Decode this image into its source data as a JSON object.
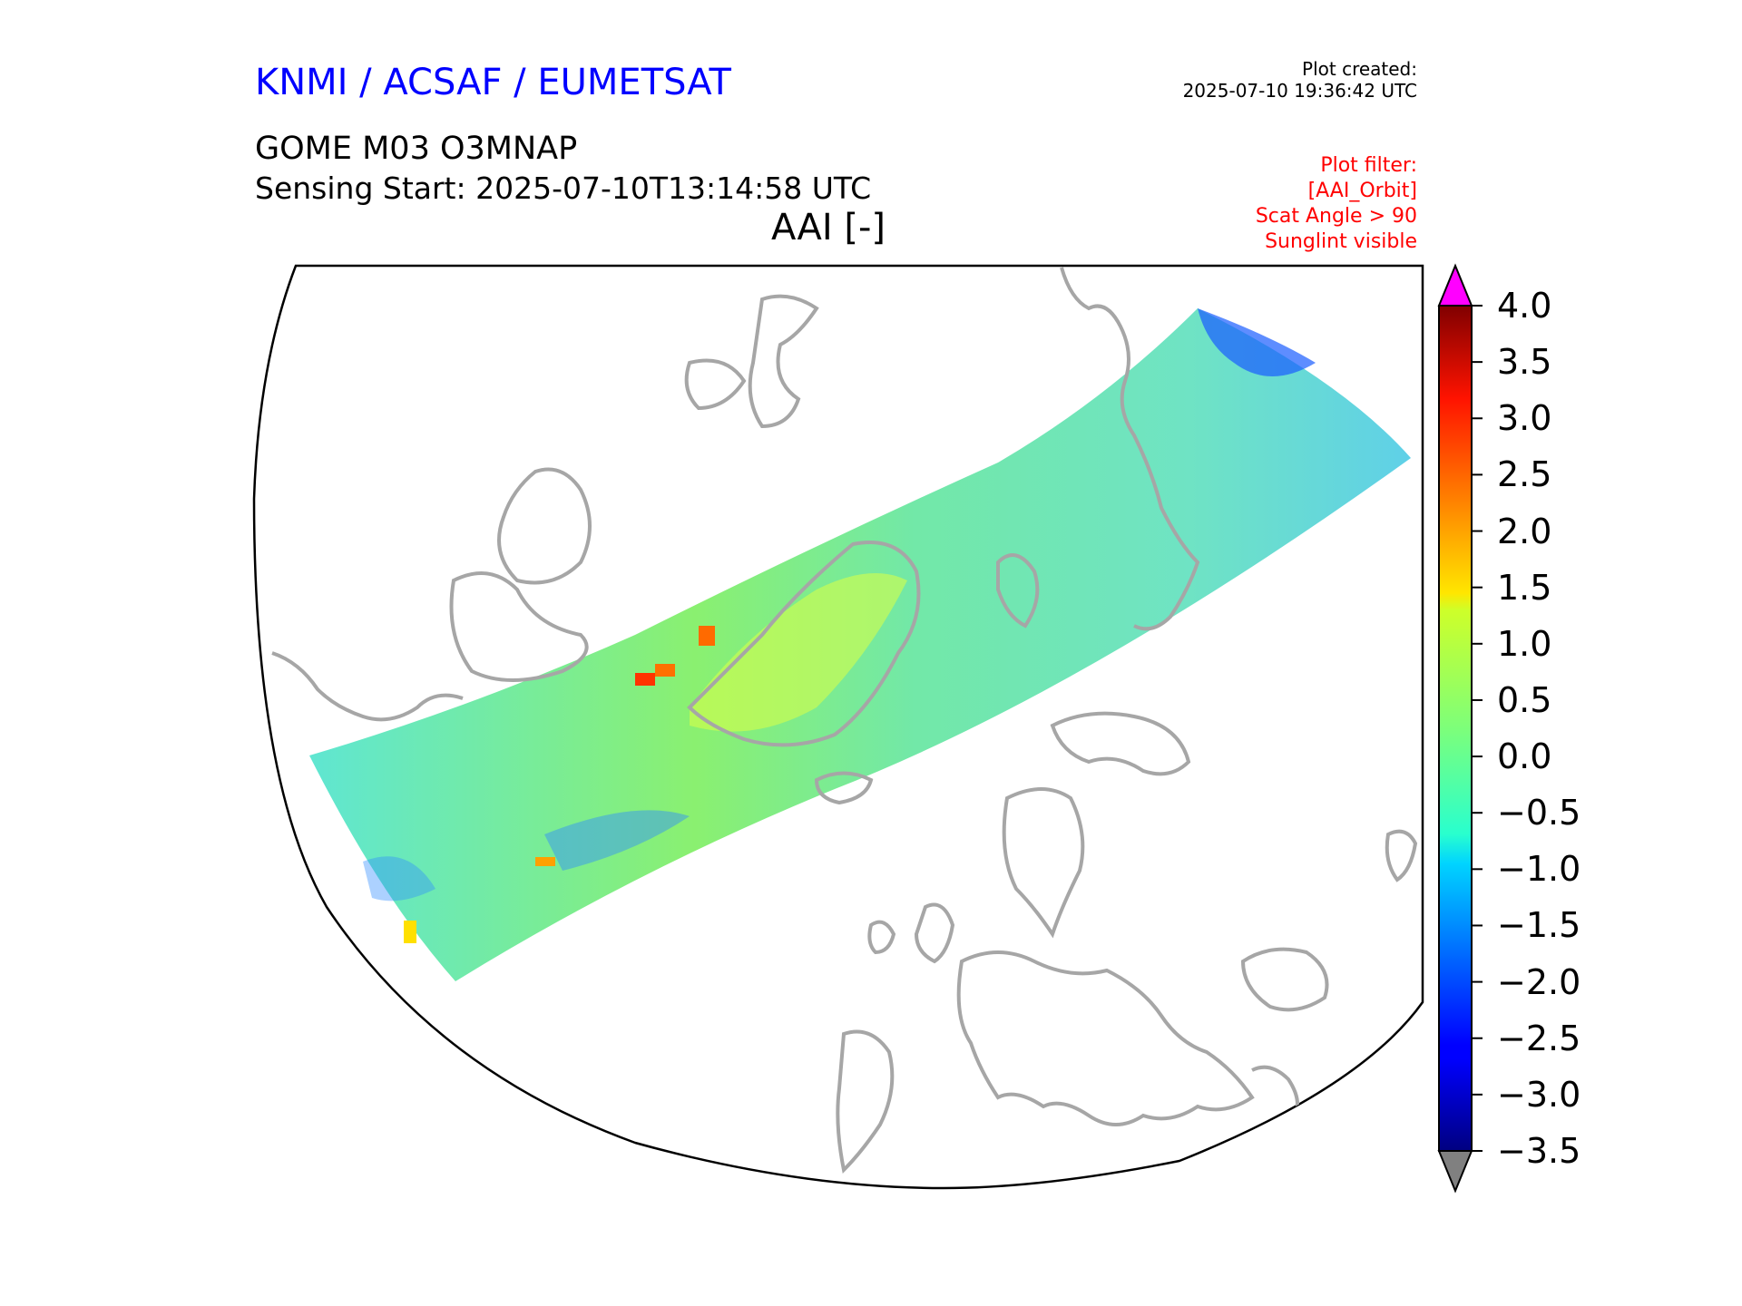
{
  "header": {
    "credit": "KNMI / ACSAF / EUMETSAT",
    "created_label": "Plot created:",
    "created_time": "2025-07-10 19:36:42 UTC",
    "product": "GOME M03 O3MNAP",
    "sensing_start": "Sensing Start: 2025-07-10T13:14:58 UTC",
    "parameter": "AAI [-]"
  },
  "filters": [
    "Plot filter:",
    "[AAI_Orbit]",
    "Scat Angle > 90",
    "Sunglint visible"
  ],
  "colorbar": {
    "ticks": [
      "4.0",
      "3.5",
      "3.0",
      "2.5",
      "2.0",
      "1.5",
      "1.0",
      "0.5",
      "0.0",
      "−0.5",
      "−1.0",
      "−1.5",
      "−2.0",
      "−2.5",
      "−3.0",
      "−3.5"
    ],
    "min": -3.5,
    "max": 4.0,
    "over_color": "#ff00ff",
    "under_color": "#808080",
    "colormap": "jet"
  },
  "map": {
    "coastline_color": "#a6a6a6",
    "frame_color": "#000000"
  }
}
